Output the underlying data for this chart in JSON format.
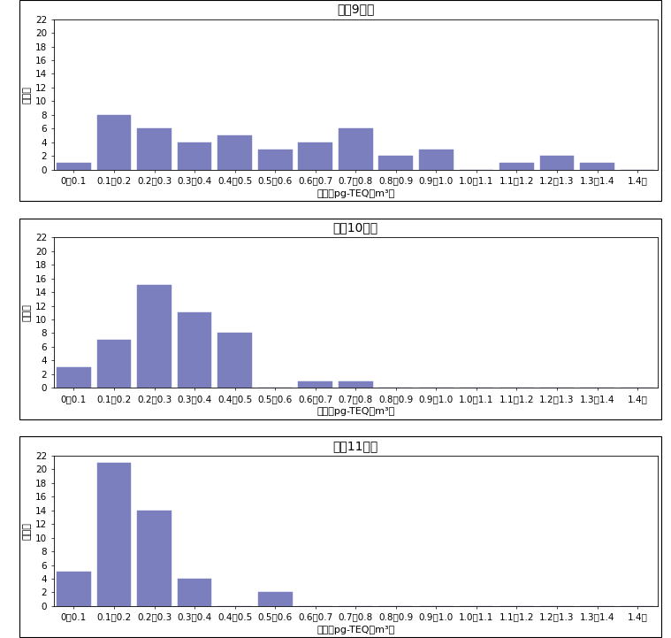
{
  "charts": [
    {
      "title": "平成9年度",
      "values": [
        1,
        8,
        6,
        4,
        5,
        3,
        4,
        6,
        2,
        3,
        0,
        1,
        2,
        1,
        0
      ]
    },
    {
      "title": "平成10年度",
      "values": [
        3,
        7,
        15,
        11,
        8,
        0,
        1,
        1,
        0,
        0,
        0,
        0,
        0,
        0,
        0
      ]
    },
    {
      "title": "平成11年度",
      "values": [
        5,
        21,
        14,
        4,
        0,
        2,
        0,
        0,
        0,
        0,
        0,
        0,
        0,
        0,
        0
      ]
    }
  ],
  "categories": [
    "0～0.1",
    "0.1～0.2",
    "0.2～0.3",
    "0.3～0.4",
    "0.4～0.5",
    "0.5～0.6",
    "0.6～0.7",
    "0.7～0.8",
    "0.8～0.9",
    "0.9～1.0",
    "1.0～1.1",
    "1.1～1.2",
    "1.2～1.3",
    "1.3～1.4",
    "1.4～"
  ],
  "xlabel": "濃度（pg-TEQ／m³）",
  "ylabel": "地点数",
  "ylim": [
    0,
    22
  ],
  "yticks": [
    0,
    2,
    4,
    6,
    8,
    10,
    12,
    14,
    16,
    18,
    20,
    22
  ],
  "bar_color": "#7b7fbe",
  "bar_edge_color": "#7b7fbe",
  "background_color": "#ffffff",
  "plot_bg_color": "#ffffff",
  "title_fontsize": 10,
  "label_fontsize": 8,
  "tick_fontsize": 7.5
}
